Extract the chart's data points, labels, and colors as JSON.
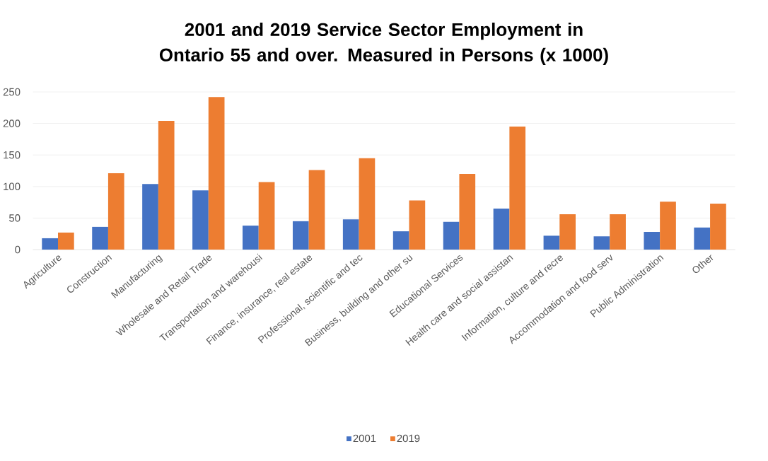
{
  "chart_data": {
    "type": "bar",
    "title": "2001 and 2019 Service Sector Employment in Ontario 55 and over. Measured in Persons (x 1000)",
    "categories": [
      "Agriculture",
      "Construction",
      "Manufacturing",
      "Wholesale and Retail Trade",
      "Transportation and warehousi",
      "Finance, insurance, real estate",
      "Professional, scientific and tec",
      "Business, building and other su",
      "Educational Services",
      "Health care and social assistan",
      "Information, culture and recre",
      "Accommodation and food serv",
      "Public Administration",
      "Other"
    ],
    "series": [
      {
        "name": "2001",
        "color": "#4472c4",
        "values": [
          18,
          36,
          104,
          94,
          38,
          45,
          48,
          29,
          44,
          65,
          22,
          21,
          28,
          35
        ]
      },
      {
        "name": "2019",
        "color": "#ed7d31",
        "values": [
          27,
          121,
          204,
          242,
          107,
          126,
          145,
          78,
          120,
          195,
          56,
          56,
          76,
          73
        ]
      }
    ],
    "ylim": [
      0,
      250
    ],
    "yticks": [
      0,
      50,
      100,
      150,
      200,
      250
    ],
    "grid": "y",
    "legend": "bottom"
  }
}
